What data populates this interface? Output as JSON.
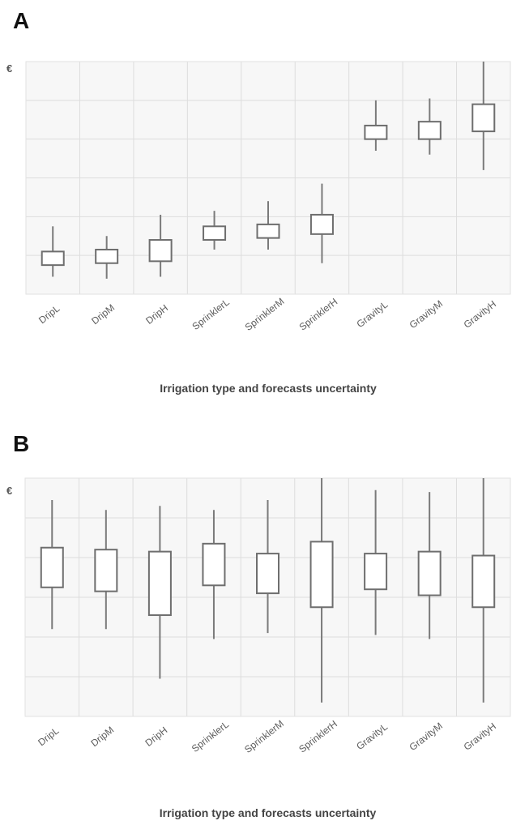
{
  "figure": {
    "panel_a_label": "A",
    "panel_b_label": "B"
  },
  "chart_data": [
    {
      "type": "box",
      "panel": "A",
      "y_unit_label": "€",
      "xlabel": "Irrigation type and forecasts uncertainty",
      "ylabel": "",
      "categories": [
        "DripL",
        "DripM",
        "DripH",
        "SprinklerL",
        "SprinklerM",
        "SprinklerH",
        "GravityL",
        "GravityM",
        "GravityH"
      ],
      "ylim": [
        0,
        6
      ],
      "grid": true,
      "boxes": [
        {
          "category": "DripL",
          "min": 0.45,
          "q1": 0.75,
          "q3": 1.1,
          "max": 1.75
        },
        {
          "category": "DripM",
          "min": 0.4,
          "q1": 0.8,
          "q3": 1.15,
          "max": 1.5
        },
        {
          "category": "DripH",
          "min": 0.45,
          "q1": 0.85,
          "q3": 1.4,
          "max": 2.05
        },
        {
          "category": "SprinklerL",
          "min": 1.15,
          "q1": 1.4,
          "q3": 1.75,
          "max": 2.15
        },
        {
          "category": "SprinklerM",
          "min": 1.15,
          "q1": 1.45,
          "q3": 1.8,
          "max": 2.4
        },
        {
          "category": "SprinklerH",
          "min": 0.8,
          "q1": 1.55,
          "q3": 2.05,
          "max": 2.85
        },
        {
          "category": "GravityL",
          "min": 3.7,
          "q1": 4.0,
          "q3": 4.35,
          "max": 5.0
        },
        {
          "category": "GravityM",
          "min": 3.6,
          "q1": 4.0,
          "q3": 4.45,
          "max": 5.05
        },
        {
          "category": "GravityH",
          "min": 3.2,
          "q1": 4.2,
          "q3": 4.9,
          "max": 6.0
        }
      ]
    },
    {
      "type": "box",
      "panel": "B",
      "y_unit_label": "€",
      "xlabel": "Irrigation type and forecasts uncertainty",
      "ylabel": "",
      "categories": [
        "DripL",
        "DripM",
        "DripH",
        "SprinklerL",
        "SprinklerM",
        "SprinklerH",
        "GravityL",
        "GravityM",
        "GravityH"
      ],
      "ylim": [
        0,
        6
      ],
      "grid": true,
      "boxes": [
        {
          "category": "DripL",
          "min": 2.2,
          "q1": 3.25,
          "q3": 4.25,
          "max": 5.45
        },
        {
          "category": "DripM",
          "min": 2.2,
          "q1": 3.15,
          "q3": 4.2,
          "max": 5.2
        },
        {
          "category": "DripH",
          "min": 0.95,
          "q1": 2.55,
          "q3": 4.15,
          "max": 5.3
        },
        {
          "category": "SprinklerL",
          "min": 1.95,
          "q1": 3.3,
          "q3": 4.35,
          "max": 5.2
        },
        {
          "category": "SprinklerM",
          "min": 2.1,
          "q1": 3.1,
          "q3": 4.1,
          "max": 5.45
        },
        {
          "category": "SprinklerH",
          "min": 0.35,
          "q1": 2.75,
          "q3": 4.4,
          "max": 6.0
        },
        {
          "category": "GravityL",
          "min": 2.05,
          "q1": 3.2,
          "q3": 4.1,
          "max": 5.7
        },
        {
          "category": "GravityM",
          "min": 1.95,
          "q1": 3.05,
          "q3": 4.15,
          "max": 5.65
        },
        {
          "category": "GravityH",
          "min": 0.35,
          "q1": 2.75,
          "q3": 4.05,
          "max": 6.0
        }
      ]
    }
  ]
}
